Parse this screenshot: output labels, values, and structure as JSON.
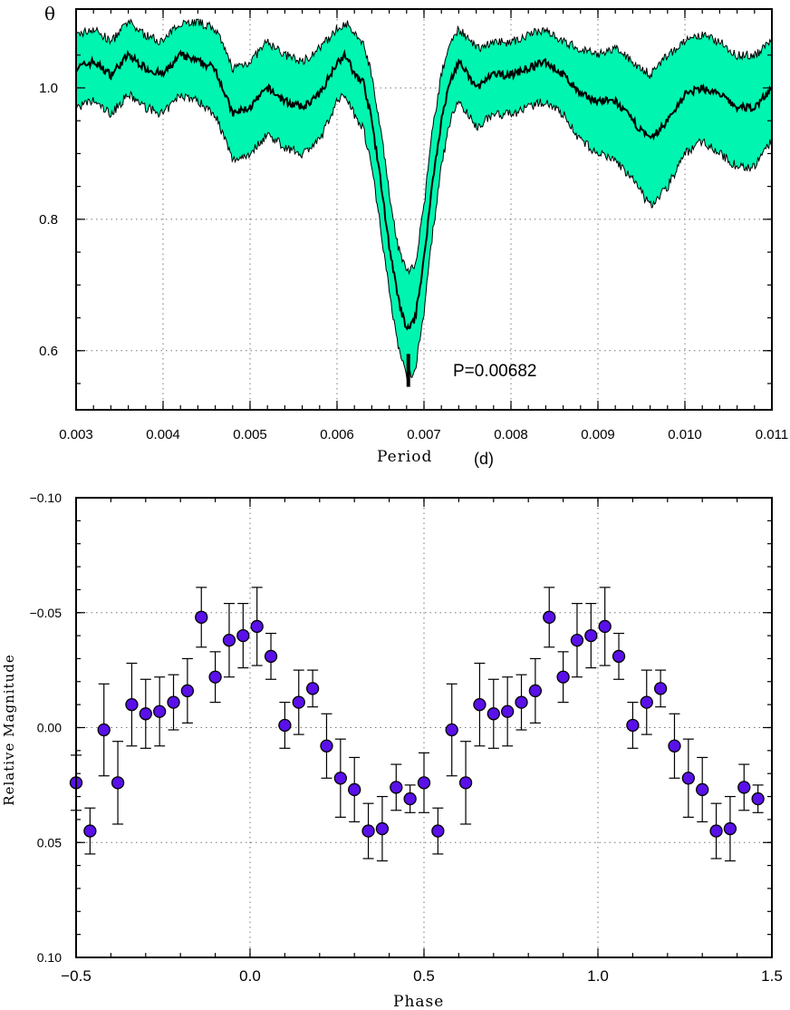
{
  "chart_data": [
    {
      "type": "line",
      "ylabel": "θ",
      "xlabel": "Period",
      "xunit": "(d)",
      "xlim": [
        0.003,
        0.011
      ],
      "ylim": [
        0.51,
        1.12
      ],
      "x_ticks": [
        0.003,
        0.004,
        0.005,
        0.006,
        0.007,
        0.008,
        0.009,
        0.01,
        0.011
      ],
      "x_tick_labels": [
        "0.003",
        "0.004",
        "0.005",
        "0.006",
        "0.007",
        "0.008",
        "0.009",
        "0.010",
        "0.011"
      ],
      "y_ticks": [
        0.6,
        0.8,
        1.0
      ],
      "y_tick_labels": [
        "0.6",
        "0.8",
        "1.0"
      ],
      "grid": true,
      "band_color": "#00f5b0",
      "line_color": "#000000",
      "annotation": "P=0.00682",
      "best_period": 0.00682,
      "x": [
        0.003,
        0.0032,
        0.0034,
        0.0036,
        0.0038,
        0.004,
        0.0042,
        0.0044,
        0.0046,
        0.0048,
        0.005,
        0.0052,
        0.0054,
        0.0056,
        0.0058,
        0.006,
        0.0061,
        0.0062,
        0.0063,
        0.0064,
        0.0065,
        0.0066,
        0.0067,
        0.0068,
        0.0069,
        0.007,
        0.0071,
        0.0072,
        0.0073,
        0.0074,
        0.0076,
        0.0078,
        0.008,
        0.0082,
        0.0084,
        0.0086,
        0.0088,
        0.009,
        0.0092,
        0.0094,
        0.0096,
        0.0098,
        0.01,
        0.0102,
        0.0104,
        0.0106,
        0.0108,
        0.011
      ],
      "theta": [
        1.03,
        1.04,
        1.02,
        1.05,
        1.03,
        1.02,
        1.05,
        1.04,
        1.03,
        0.96,
        0.97,
        1.0,
        0.98,
        0.97,
        0.99,
        1.04,
        1.05,
        1.02,
        1.01,
        0.95,
        0.86,
        0.76,
        0.68,
        0.63,
        0.65,
        0.74,
        0.86,
        0.95,
        1.01,
        1.04,
        1.0,
        1.02,
        1.02,
        1.03,
        1.04,
        1.02,
        0.99,
        0.98,
        0.98,
        0.95,
        0.92,
        0.95,
        0.99,
        1.0,
        0.99,
        0.97,
        0.97,
        1.0
      ],
      "theta_upper": [
        1.08,
        1.09,
        1.07,
        1.1,
        1.08,
        1.07,
        1.1,
        1.1,
        1.09,
        1.03,
        1.04,
        1.07,
        1.05,
        1.04,
        1.06,
        1.09,
        1.1,
        1.08,
        1.07,
        1.02,
        0.94,
        0.84,
        0.76,
        0.72,
        0.73,
        0.82,
        0.94,
        1.02,
        1.07,
        1.09,
        1.06,
        1.07,
        1.07,
        1.08,
        1.09,
        1.07,
        1.06,
        1.05,
        1.06,
        1.04,
        1.02,
        1.05,
        1.07,
        1.08,
        1.07,
        1.05,
        1.05,
        1.07
      ],
      "theta_lower": [
        0.97,
        0.98,
        0.96,
        0.99,
        0.97,
        0.96,
        0.99,
        0.98,
        0.96,
        0.89,
        0.9,
        0.93,
        0.91,
        0.9,
        0.92,
        0.98,
        0.99,
        0.96,
        0.94,
        0.88,
        0.79,
        0.69,
        0.61,
        0.56,
        0.57,
        0.66,
        0.78,
        0.88,
        0.95,
        0.98,
        0.94,
        0.96,
        0.96,
        0.97,
        0.98,
        0.96,
        0.92,
        0.9,
        0.89,
        0.86,
        0.82,
        0.85,
        0.9,
        0.92,
        0.9,
        0.88,
        0.88,
        0.92
      ]
    },
    {
      "type": "scatter",
      "xlabel": "Phase",
      "ylabel": "Relative Magnitude",
      "xlim": [
        -0.5,
        1.5
      ],
      "ylim": [
        -0.1,
        0.1
      ],
      "y_inverted": true,
      "x_ticks": [
        -0.5,
        0.0,
        0.5,
        1.0,
        1.5
      ],
      "x_tick_labels": [
        "−0.5",
        "0.0",
        "0.5",
        "1.0",
        "1.5"
      ],
      "y_ticks": [
        -0.1,
        -0.05,
        0.0,
        0.05,
        0.1
      ],
      "y_tick_labels": [
        "−0.10",
        "−0.05",
        "0.00",
        "0.05",
        "0.10"
      ],
      "grid": true,
      "marker_color": "#5a10e8",
      "x": [
        -0.5,
        -0.46,
        -0.42,
        -0.38,
        -0.34,
        -0.3,
        -0.26,
        -0.22,
        -0.18,
        -0.14,
        -0.1,
        -0.06,
        -0.02,
        0.02,
        0.06,
        0.1,
        0.14,
        0.18,
        0.22,
        0.26,
        0.3,
        0.34,
        0.38,
        0.42,
        0.46,
        0.5,
        0.54,
        0.58,
        0.62,
        0.66,
        0.7,
        0.74,
        0.78,
        0.82,
        0.86,
        0.9,
        0.94,
        0.98,
        1.02,
        1.06,
        1.1,
        1.14,
        1.18,
        1.22,
        1.26,
        1.3,
        1.34,
        1.38,
        1.42,
        1.46
      ],
      "y": [
        0.024,
        0.045,
        0.001,
        0.024,
        -0.01,
        -0.006,
        -0.007,
        -0.011,
        -0.016,
        -0.048,
        -0.022,
        -0.038,
        -0.04,
        -0.044,
        -0.031,
        -0.001,
        -0.011,
        -0.017,
        0.008,
        0.022,
        0.027,
        0.045,
        0.044,
        0.026,
        0.031,
        0.024,
        0.045,
        0.001,
        0.024,
        -0.01,
        -0.006,
        -0.007,
        -0.011,
        -0.016,
        -0.048,
        -0.022,
        -0.038,
        -0.04,
        -0.044,
        -0.031,
        -0.001,
        -0.011,
        -0.017,
        0.008,
        0.022,
        0.027,
        0.045,
        0.044,
        0.026,
        0.031
      ],
      "err": [
        0.012,
        0.01,
        0.02,
        0.018,
        0.018,
        0.015,
        0.015,
        0.012,
        0.014,
        0.013,
        0.011,
        0.016,
        0.014,
        0.017,
        0.01,
        0.01,
        0.014,
        0.008,
        0.014,
        0.017,
        0.014,
        0.012,
        0.014,
        0.01,
        0.006,
        0.013,
        0.01,
        0.02,
        0.018,
        0.018,
        0.015,
        0.015,
        0.012,
        0.014,
        0.013,
        0.011,
        0.016,
        0.014,
        0.017,
        0.01,
        0.01,
        0.014,
        0.008,
        0.014,
        0.017,
        0.014,
        0.012,
        0.014,
        0.01,
        0.006
      ]
    }
  ]
}
